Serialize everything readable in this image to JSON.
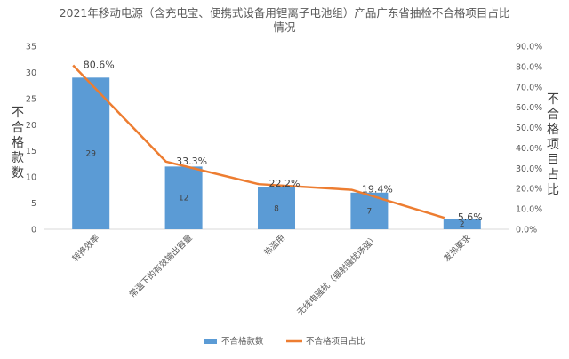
{
  "chart_data": {
    "type": "bar",
    "title": "2021年移动电源（含充电宝、便携式设备用锂离子电池组）产品广东省抽检不合格项目占比",
    "title_line2": "情况",
    "ylabel_left": "不合格款数",
    "ylabel_right": "不合格项目占比",
    "categories": [
      "转换效率",
      "常温下的有效输出容量",
      "热滥用",
      "无线电骚扰（辐射骚扰场强）",
      "发热要求"
    ],
    "series": [
      {
        "name": "不合格款数",
        "type": "bar",
        "axis": "left",
        "values": [
          29,
          12,
          8,
          7,
          2
        ],
        "labels": [
          "29",
          "12",
          "8",
          "7",
          "2"
        ],
        "color": "#5B9BD5"
      },
      {
        "name": "不合格项目占比",
        "type": "line",
        "axis": "right",
        "values": [
          80.6,
          33.3,
          22.2,
          19.4,
          5.6
        ],
        "labels": [
          "80.6%",
          "33.3%",
          "22.2%",
          "19.4%",
          "5.6%"
        ],
        "color": "#ED7D31"
      }
    ],
    "ylim_left": [
      0,
      35
    ],
    "yticks_left": [
      "0",
      "5",
      "10",
      "15",
      "20",
      "25",
      "30",
      "35"
    ],
    "ylim_right": [
      0,
      90
    ],
    "yticks_right": [
      "0.0%",
      "10.0%",
      "20.0%",
      "30.0%",
      "40.0%",
      "50.0%",
      "60.0%",
      "70.0%",
      "80.0%",
      "90.0%"
    ],
    "grid": false,
    "legend_position": "bottom"
  }
}
